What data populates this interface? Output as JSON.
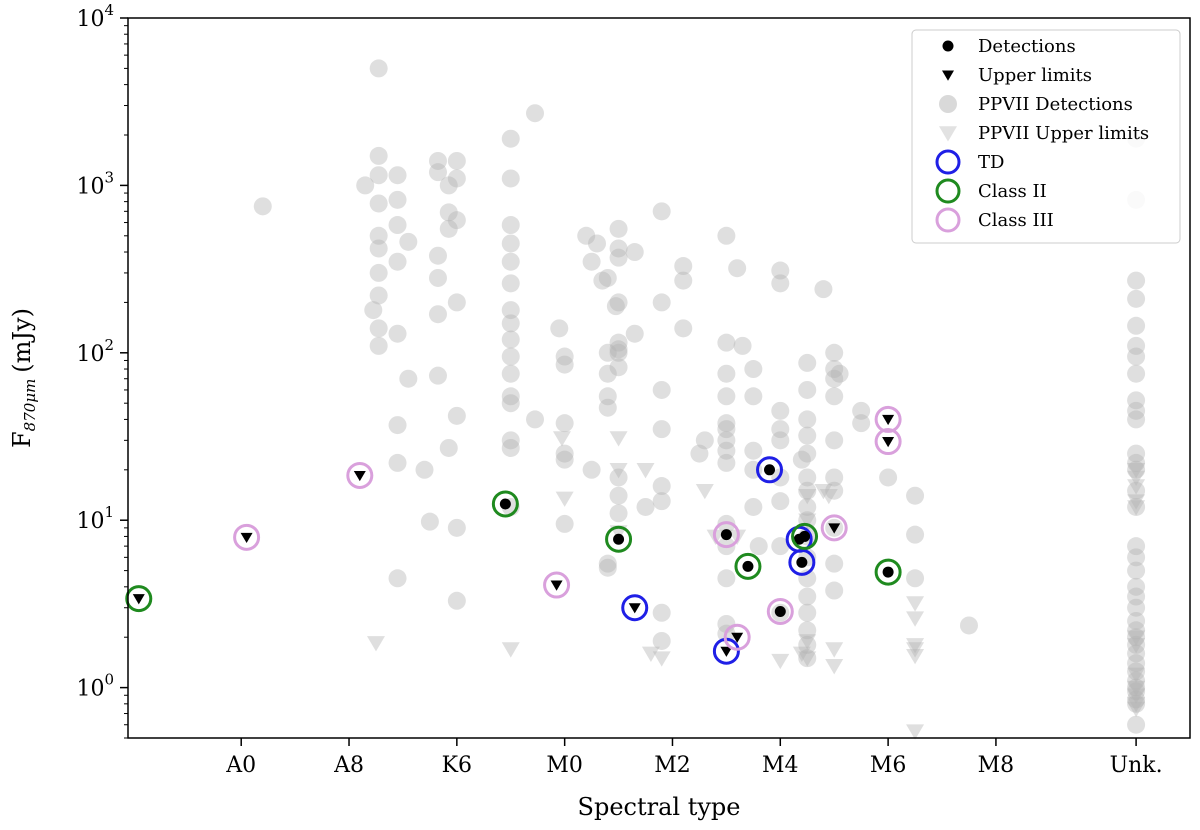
{
  "chart_data": {
    "type": "scatter",
    "title": "",
    "xlabel": "Spectral type",
    "ylabel": {
      "main": "F",
      "sub": "870μm",
      "unit": "(mJy)"
    },
    "yscale": "log",
    "ylim": [
      0.5,
      10000
    ],
    "xlim": [
      -1.1,
      18.6
    ],
    "x_ticks": [
      {
        "value": 1,
        "label": "A0"
      },
      {
        "value": 3,
        "label": "A8"
      },
      {
        "value": 5,
        "label": "K6"
      },
      {
        "value": 7,
        "label": "M0"
      },
      {
        "value": 9,
        "label": "M2"
      },
      {
        "value": 11,
        "label": "M4"
      },
      {
        "value": 13,
        "label": "M6"
      },
      {
        "value": 15,
        "label": "M8"
      },
      {
        "value": 17.6,
        "label": "Unk."
      }
    ],
    "y_ticks": [
      {
        "value": 1,
        "base": "10",
        "exp": "0"
      },
      {
        "value": 10,
        "base": "10",
        "exp": "1"
      },
      {
        "value": 100,
        "base": "10",
        "exp": "2"
      },
      {
        "value": 1000,
        "base": "10",
        "exp": "3"
      },
      {
        "value": 10000,
        "base": "10",
        "exp": "4"
      }
    ],
    "legend": {
      "position": "top-right",
      "entries": [
        {
          "label": "Detections",
          "marker": "dot",
          "color": "#000000"
        },
        {
          "label": "Upper limits",
          "marker": "triangle",
          "color": "#000000"
        },
        {
          "label": "PPVII Detections",
          "marker": "dot",
          "color": "#d9d9d9"
        },
        {
          "label": "PPVII Upper limits",
          "marker": "triangle",
          "color": "#e2e2e2"
        },
        {
          "label": "TD",
          "marker": "ring",
          "color": "#1f1fe6"
        },
        {
          "label": "Class II",
          "marker": "ring",
          "color": "#1f8a1f"
        },
        {
          "label": "Class III",
          "marker": "ring",
          "color": "#d9a0dc"
        }
      ]
    },
    "colors": {
      "detection": "#000000",
      "ppvii": "#d9d9d9",
      "TD": "#1f1fe6",
      "ClassII": "#1f8a1f",
      "ClassIII": "#d9a0dc"
    },
    "ppvii_detections": [
      [
        1.4,
        750
      ],
      [
        3.55,
        5000
      ],
      [
        3.55,
        1500
      ],
      [
        3.55,
        1150
      ],
      [
        3.55,
        780
      ],
      [
        3.55,
        500
      ],
      [
        3.55,
        420
      ],
      [
        3.55,
        300
      ],
      [
        3.55,
        220
      ],
      [
        3.55,
        140
      ],
      [
        3.55,
        110
      ],
      [
        3.3,
        1000
      ],
      [
        3.45,
        180
      ],
      [
        3.9,
        1150
      ],
      [
        3.9,
        820
      ],
      [
        3.9,
        580
      ],
      [
        3.9,
        350
      ],
      [
        3.9,
        130
      ],
      [
        3.9,
        37
      ],
      [
        3.9,
        22
      ],
      [
        3.9,
        4.5
      ],
      [
        4.1,
        460
      ],
      [
        4.1,
        70
      ],
      [
        4.4,
        20
      ],
      [
        4.5,
        9.8
      ],
      [
        4.65,
        1400
      ],
      [
        4.65,
        1200
      ],
      [
        4.65,
        380
      ],
      [
        4.65,
        280
      ],
      [
        4.65,
        170
      ],
      [
        4.65,
        73
      ],
      [
        4.85,
        1000
      ],
      [
        4.85,
        690
      ],
      [
        4.85,
        550
      ],
      [
        4.85,
        27
      ],
      [
        5.0,
        1400
      ],
      [
        5.0,
        1100
      ],
      [
        5.0,
        620
      ],
      [
        5.0,
        200
      ],
      [
        5.0,
        42
      ],
      [
        5.0,
        9
      ],
      [
        5.0,
        3.3
      ],
      [
        6.0,
        1900
      ],
      [
        6.0,
        1100
      ],
      [
        6.0,
        580
      ],
      [
        6.0,
        450
      ],
      [
        6.0,
        350
      ],
      [
        6.0,
        260
      ],
      [
        6.0,
        180
      ],
      [
        6.0,
        150
      ],
      [
        6.0,
        120
      ],
      [
        6.0,
        95
      ],
      [
        6.0,
        75
      ],
      [
        6.0,
        55
      ],
      [
        6.0,
        50
      ],
      [
        6.0,
        30
      ],
      [
        6.0,
        27
      ],
      [
        6.0,
        12
      ],
      [
        6.45,
        2700
      ],
      [
        6.45,
        40
      ],
      [
        6.9,
        140
      ],
      [
        7.0,
        95
      ],
      [
        7.0,
        85
      ],
      [
        7.0,
        38
      ],
      [
        7.0,
        25
      ],
      [
        7.0,
        23
      ],
      [
        7.0,
        9.5
      ],
      [
        7.4,
        500
      ],
      [
        7.5,
        350
      ],
      [
        7.5,
        20
      ],
      [
        7.6,
        450
      ],
      [
        7.7,
        270
      ],
      [
        7.8,
        280
      ],
      [
        7.8,
        100
      ],
      [
        7.8,
        75
      ],
      [
        7.8,
        47
      ],
      [
        7.8,
        55
      ],
      [
        7.8,
        5.5
      ],
      [
        7.8,
        5.2
      ],
      [
        7.95,
        190
      ],
      [
        8.0,
        550
      ],
      [
        8.0,
        420
      ],
      [
        8.0,
        370
      ],
      [
        8.0,
        200
      ],
      [
        8.0,
        115
      ],
      [
        8.0,
        105
      ],
      [
        8.0,
        100
      ],
      [
        8.0,
        82
      ],
      [
        8.0,
        18
      ],
      [
        8.0,
        14
      ],
      [
        8.0,
        11
      ],
      [
        8.3,
        400
      ],
      [
        8.3,
        130
      ],
      [
        8.5,
        12
      ],
      [
        8.8,
        700
      ],
      [
        8.8,
        200
      ],
      [
        8.8,
        60
      ],
      [
        8.8,
        35
      ],
      [
        8.8,
        16
      ],
      [
        8.8,
        13
      ],
      [
        8.8,
        2.8
      ],
      [
        8.8,
        1.9
      ],
      [
        9.2,
        330
      ],
      [
        9.2,
        270
      ],
      [
        9.2,
        140
      ],
      [
        9.5,
        25
      ],
      [
        9.6,
        30
      ],
      [
        10.0,
        500
      ],
      [
        10.0,
        115
      ],
      [
        10.0,
        75
      ],
      [
        10.0,
        55
      ],
      [
        10.0,
        38
      ],
      [
        10.0,
        35
      ],
      [
        10.0,
        30
      ],
      [
        10.0,
        26
      ],
      [
        10.0,
        22
      ],
      [
        10.0,
        9.5
      ],
      [
        10.0,
        7
      ],
      [
        10.0,
        4.5
      ],
      [
        10.0,
        2.4
      ],
      [
        10.0,
        2.1
      ],
      [
        10.2,
        320
      ],
      [
        10.3,
        110
      ],
      [
        10.5,
        80
      ],
      [
        10.5,
        55
      ],
      [
        10.5,
        26
      ],
      [
        10.5,
        20
      ],
      [
        10.5,
        12
      ],
      [
        10.6,
        7
      ],
      [
        11.0,
        310
      ],
      [
        11.0,
        260
      ],
      [
        11.0,
        45
      ],
      [
        11.0,
        35
      ],
      [
        11.0,
        30
      ],
      [
        11.0,
        18
      ],
      [
        11.0,
        13
      ],
      [
        11.0,
        7
      ],
      [
        11.0,
        2.8
      ],
      [
        11.4,
        23
      ],
      [
        11.5,
        87
      ],
      [
        11.5,
        60
      ],
      [
        11.5,
        40
      ],
      [
        11.5,
        32
      ],
      [
        11.5,
        25
      ],
      [
        11.5,
        18
      ],
      [
        11.5,
        15
      ],
      [
        11.5,
        12
      ],
      [
        11.5,
        10
      ],
      [
        11.5,
        8
      ],
      [
        11.5,
        6
      ],
      [
        11.5,
        4.5
      ],
      [
        11.5,
        3.5
      ],
      [
        11.5,
        2.8
      ],
      [
        11.5,
        2.2
      ],
      [
        11.5,
        1.8
      ],
      [
        11.5,
        1.5
      ],
      [
        11.8,
        240
      ],
      [
        12.0,
        100
      ],
      [
        12.0,
        80
      ],
      [
        12.0,
        70
      ],
      [
        12.0,
        55
      ],
      [
        12.0,
        30
      ],
      [
        12.0,
        18
      ],
      [
        12.0,
        15
      ],
      [
        12.0,
        9
      ],
      [
        12.0,
        5.5
      ],
      [
        12.0,
        3.8
      ],
      [
        12.1,
        75
      ],
      [
        12.5,
        45
      ],
      [
        12.5,
        38
      ],
      [
        13.0,
        18
      ],
      [
        13.5,
        14
      ],
      [
        13.5,
        8.2
      ],
      [
        13.5,
        4.5
      ],
      [
        14.5,
        2.35
      ],
      [
        17.6,
        1900
      ],
      [
        17.6,
        820
      ],
      [
        17.6,
        270
      ],
      [
        17.6,
        210
      ],
      [
        17.6,
        145
      ],
      [
        17.6,
        110
      ],
      [
        17.6,
        95
      ],
      [
        17.6,
        75
      ],
      [
        17.6,
        52
      ],
      [
        17.6,
        45
      ],
      [
        17.6,
        40
      ],
      [
        17.6,
        25
      ],
      [
        17.6,
        22
      ],
      [
        17.6,
        20
      ],
      [
        17.6,
        15
      ],
      [
        17.6,
        12
      ],
      [
        17.6,
        7
      ],
      [
        17.6,
        6
      ],
      [
        17.6,
        5
      ],
      [
        17.6,
        4
      ],
      [
        17.6,
        3.5
      ],
      [
        17.6,
        3
      ],
      [
        17.6,
        2.5
      ],
      [
        17.6,
        2.2
      ],
      [
        17.6,
        2.0
      ],
      [
        17.6,
        1.8
      ],
      [
        17.6,
        1.6
      ],
      [
        17.6,
        1.4
      ],
      [
        17.6,
        1.25
      ],
      [
        17.6,
        1.1
      ],
      [
        17.6,
        1.0
      ],
      [
        17.6,
        0.95
      ],
      [
        17.6,
        0.85
      ],
      [
        17.6,
        0.8
      ],
      [
        17.6,
        0.6
      ]
    ],
    "ppvii_upper_limits": [
      [
        3.5,
        1.85
      ],
      [
        6.0,
        1.7
      ],
      [
        6.95,
        31
      ],
      [
        7.0,
        13.5
      ],
      [
        8.0,
        31
      ],
      [
        8.0,
        20
      ],
      [
        8.0,
        8.5
      ],
      [
        8.5,
        20
      ],
      [
        8.6,
        1.6
      ],
      [
        8.8,
        1.5
      ],
      [
        9.6,
        15
      ],
      [
        9.8,
        8
      ],
      [
        10.2,
        8
      ],
      [
        11.0,
        1.45
      ],
      [
        11.4,
        1.6
      ],
      [
        11.5,
        14
      ],
      [
        11.5,
        10
      ],
      [
        11.5,
        1.9
      ],
      [
        11.5,
        1.5
      ],
      [
        11.8,
        15
      ],
      [
        11.9,
        14
      ],
      [
        12.0,
        1.7
      ],
      [
        12.0,
        1.35
      ],
      [
        13.5,
        3.2
      ],
      [
        13.5,
        2.6
      ],
      [
        13.5,
        1.8
      ],
      [
        13.5,
        1.7
      ],
      [
        13.5,
        1.55
      ],
      [
        13.5,
        0.55
      ],
      [
        17.6,
        20
      ],
      [
        17.6,
        18
      ],
      [
        17.6,
        16
      ],
      [
        17.6,
        13
      ],
      [
        17.6,
        12
      ],
      [
        17.6,
        2
      ],
      [
        17.6,
        1.8
      ],
      [
        17.6,
        1.2
      ],
      [
        17.6,
        1.0
      ],
      [
        17.6,
        0.9
      ],
      [
        17.6,
        0.8
      ],
      [
        17.6,
        0.75
      ]
    ],
    "sources": [
      {
        "x": 5.9,
        "y": 12.5,
        "kind": "detection",
        "class": "ClassII"
      },
      {
        "x": 8.0,
        "y": 7.7,
        "kind": "detection",
        "class": "ClassII"
      },
      {
        "x": 10.0,
        "y": 8.2,
        "kind": "detection",
        "class": "ClassIII"
      },
      {
        "x": 10.4,
        "y": 5.3,
        "kind": "detection",
        "class": "ClassII"
      },
      {
        "x": 10.8,
        "y": 20,
        "kind": "detection",
        "class": "TD"
      },
      {
        "x": 11.0,
        "y": 2.85,
        "kind": "detection",
        "class": "ClassIII"
      },
      {
        "x": 11.35,
        "y": 7.7,
        "kind": "detection",
        "class": "TD"
      },
      {
        "x": 11.4,
        "y": 5.6,
        "kind": "detection",
        "class": "TD"
      },
      {
        "x": 11.45,
        "y": 8.0,
        "kind": "detection",
        "class": "ClassII"
      },
      {
        "x": 13.0,
        "y": 4.9,
        "kind": "detection",
        "class": "ClassII"
      },
      {
        "x": -0.9,
        "y": 3.4,
        "kind": "upper_limit",
        "class": "ClassII"
      },
      {
        "x": 1.1,
        "y": 7.9,
        "kind": "upper_limit",
        "class": "ClassIII"
      },
      {
        "x": 3.2,
        "y": 18.5,
        "kind": "upper_limit",
        "class": "ClassIII"
      },
      {
        "x": 6.85,
        "y": 4.1,
        "kind": "upper_limit",
        "class": "ClassIII"
      },
      {
        "x": 8.3,
        "y": 3.0,
        "kind": "upper_limit",
        "class": "TD"
      },
      {
        "x": 10.0,
        "y": 1.65,
        "kind": "upper_limit",
        "class": "TD"
      },
      {
        "x": 10.2,
        "y": 2.0,
        "kind": "upper_limit",
        "class": "ClassIII"
      },
      {
        "x": 12.0,
        "y": 9.0,
        "kind": "upper_limit",
        "class": "ClassIII"
      },
      {
        "x": 13.0,
        "y": 40,
        "kind": "upper_limit",
        "class": "ClassIII"
      },
      {
        "x": 13.0,
        "y": 29.5,
        "kind": "upper_limit",
        "class": "ClassIII"
      }
    ]
  }
}
